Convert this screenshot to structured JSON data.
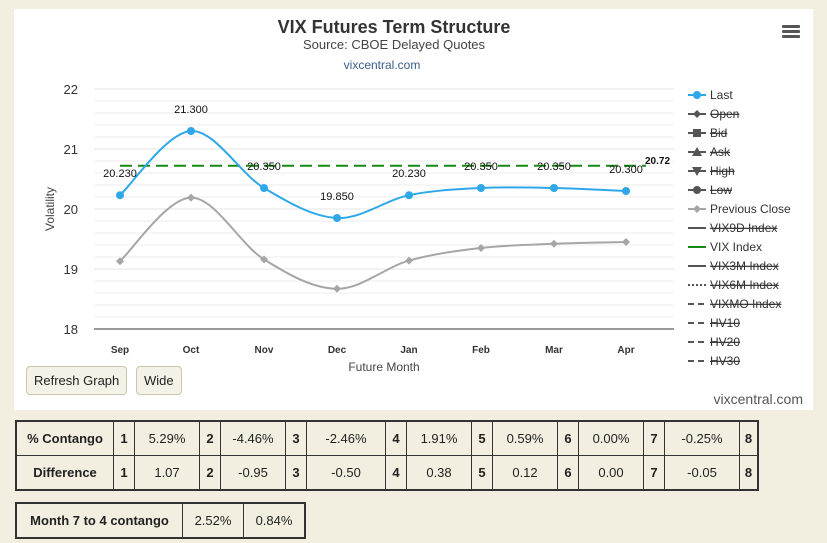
{
  "chart_data": {
    "type": "line",
    "title": "VIX Futures Term Structure",
    "subtitle": "Source: CBOE Delayed Quotes",
    "source_link": "vixcentral.com",
    "xlabel": "Future Month",
    "ylabel": "Volatility",
    "ylim": [
      18,
      22
    ],
    "yticks": [
      18,
      19,
      20,
      21,
      22
    ],
    "categories": [
      "Sep",
      "Oct",
      "Nov",
      "Dec",
      "Jan",
      "Feb",
      "Mar",
      "Apr"
    ],
    "series": [
      {
        "name": "Last",
        "values": [
          20.23,
          21.3,
          20.35,
          19.85,
          20.23,
          20.35,
          20.35,
          20.3
        ],
        "labels": [
          "20.230",
          "21.300",
          "20.350",
          "19.850",
          "20.230",
          "20.350",
          "20.350",
          "20.300"
        ],
        "color": "#2ea8e8"
      },
      {
        "name": "Previous Close",
        "values": [
          19.13,
          20.19,
          19.16,
          18.67,
          19.14,
          19.35,
          19.42,
          19.45
        ],
        "color": "#a6a6a6"
      },
      {
        "name": "VIX Index",
        "value": 20.72,
        "label": "20.72",
        "color": "#168a16"
      }
    ],
    "grid": true,
    "legend_position": "right",
    "legend": [
      {
        "name": "Last",
        "symbol": "circle",
        "color": "#2ea8e8",
        "hidden": false
      },
      {
        "name": "Open",
        "symbol": "diamond",
        "color": "#555555",
        "hidden": true
      },
      {
        "name": "Bid",
        "symbol": "square",
        "color": "#555555",
        "hidden": true
      },
      {
        "name": "Ask",
        "symbol": "triangle",
        "color": "#555555",
        "hidden": true
      },
      {
        "name": "High",
        "symbol": "triangle-down",
        "color": "#555555",
        "hidden": true
      },
      {
        "name": "Low",
        "symbol": "circle",
        "color": "#555555",
        "hidden": true
      },
      {
        "name": "Previous Close",
        "symbol": "diamond",
        "color": "#a6a6a6",
        "hidden": false
      },
      {
        "name": "VIX9D Index",
        "symbol": "solid",
        "color": "#555555",
        "hidden": true
      },
      {
        "name": "VIX Index",
        "symbol": "solid",
        "color": "#168a16",
        "hidden": false
      },
      {
        "name": "VIX3M Index",
        "symbol": "solid",
        "color": "#555555",
        "hidden": true
      },
      {
        "name": "VIX6M Index",
        "symbol": "dotted",
        "color": "#555555",
        "hidden": true
      },
      {
        "name": "VIXMO Index",
        "symbol": "dashed",
        "color": "#555555",
        "hidden": true
      },
      {
        "name": "HV10",
        "symbol": "dashed",
        "color": "#555555",
        "hidden": true
      },
      {
        "name": "HV20",
        "symbol": "dashed",
        "color": "#555555",
        "hidden": true
      },
      {
        "name": "HV30",
        "symbol": "dashed",
        "color": "#555555",
        "hidden": true
      }
    ]
  },
  "buttons": {
    "refresh": "Refresh Graph",
    "wide": "Wide"
  },
  "credit": "vixcentral.com",
  "contango_table": {
    "rows": [
      {
        "label": "% Contango",
        "cells": [
          "1",
          "5.29%",
          "2",
          "-4.46%",
          "3",
          "-2.46%",
          "4",
          "1.91%",
          "5",
          "0.59%",
          "6",
          "0.00%",
          "7",
          "-0.25%",
          "8"
        ]
      },
      {
        "label": "Difference",
        "cells": [
          "1",
          "1.07",
          "2",
          "-0.95",
          "3",
          "-0.50",
          "4",
          "0.38",
          "5",
          "0.12",
          "6",
          "0.00",
          "7",
          "-0.05",
          "8"
        ]
      }
    ]
  },
  "month_table": {
    "label": "Month 7 to 4 contango",
    "values": [
      "2.52%",
      "0.84%"
    ]
  }
}
